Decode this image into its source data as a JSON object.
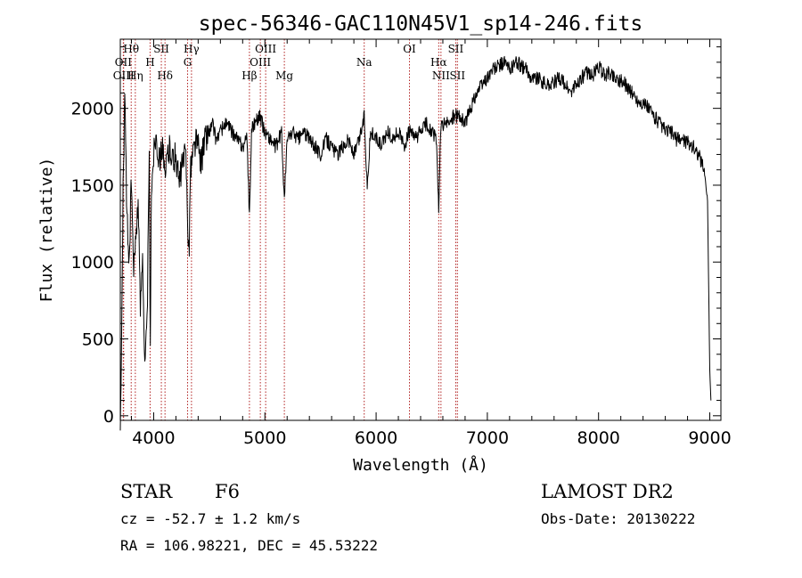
{
  "chart_data": {
    "type": "line",
    "title": "spec-56346-GAC110N45V1_sp14-246.fits",
    "xlabel": "Wavelength (Å)",
    "ylabel": "Flux (relative)",
    "xlim": [
      3700,
      9100
    ],
    "ylim": [
      -30,
      2450
    ],
    "xticks": [
      4000,
      5000,
      6000,
      7000,
      8000,
      9000
    ],
    "yticks": [
      0,
      500,
      1000,
      1500,
      2000
    ],
    "series": [
      {
        "name": "flux",
        "x": [
          3700,
          3710,
          3725,
          3740,
          3760,
          3780,
          3800,
          3820,
          3840,
          3860,
          3880,
          3900,
          3920,
          3940,
          3960,
          3970,
          3980,
          4000,
          4020,
          4050,
          4080,
          4102,
          4120,
          4150,
          4180,
          4200,
          4230,
          4260,
          4290,
          4310,
          4320,
          4330,
          4340,
          4350,
          4380,
          4400,
          4430,
          4460,
          4500,
          4530,
          4560,
          4600,
          4650,
          4700,
          4750,
          4800,
          4840,
          4861,
          4880,
          4900,
          4950,
          5000,
          5050,
          5100,
          5150,
          5175,
          5200,
          5250,
          5300,
          5350,
          5400,
          5450,
          5500,
          5550,
          5600,
          5650,
          5700,
          5750,
          5800,
          5850,
          5893,
          5920,
          5950,
          6000,
          6050,
          6100,
          6150,
          6200,
          6250,
          6300,
          6350,
          6400,
          6450,
          6500,
          6540,
          6563,
          6580,
          6600,
          6650,
          6700,
          6750,
          6800,
          6850,
          6900,
          6950,
          7000,
          7050,
          7100,
          7150,
          7200,
          7250,
          7300,
          7350,
          7400,
          7450,
          7500,
          7550,
          7600,
          7650,
          7700,
          7750,
          7800,
          7850,
          7900,
          7950,
          8000,
          8050,
          8100,
          8150,
          8200,
          8250,
          8300,
          8350,
          8400,
          8450,
          8500,
          8550,
          8600,
          8650,
          8700,
          8750,
          8800,
          8850,
          8900,
          8950,
          8980,
          9000,
          9010
        ],
        "y": [
          0,
          350,
          1450,
          2100,
          1300,
          1000,
          1550,
          900,
          1200,
          1400,
          700,
          1100,
          300,
          600,
          1650,
          400,
          1500,
          1700,
          1850,
          1650,
          1800,
          1500,
          1700,
          1750,
          1650,
          1700,
          1500,
          1650,
          1700,
          1200,
          1050,
          1600,
          1650,
          1700,
          1800,
          1750,
          1650,
          1800,
          1850,
          1900,
          1800,
          1850,
          1900,
          1850,
          1800,
          1750,
          1800,
          1300,
          1850,
          1900,
          1950,
          1850,
          1800,
          1750,
          1850,
          1400,
          1800,
          1850,
          1800,
          1850,
          1800,
          1750,
          1700,
          1800,
          1750,
          1700,
          1750,
          1800,
          1700,
          1800,
          1950,
          1500,
          1850,
          1800,
          1750,
          1850,
          1800,
          1850,
          1750,
          1850,
          1800,
          1850,
          1900,
          1850,
          1800,
          1350,
          1850,
          1900,
          1900,
          1950,
          1950,
          1900,
          2000,
          2100,
          2150,
          2200,
          2250,
          2270,
          2300,
          2250,
          2300,
          2280,
          2250,
          2200,
          2200,
          2170,
          2150,
          2170,
          2200,
          2150,
          2100,
          2150,
          2200,
          2230,
          2220,
          2270,
          2220,
          2230,
          2200,
          2180,
          2150,
          2100,
          2050,
          2030,
          2000,
          1950,
          1900,
          1850,
          1850,
          1800,
          1800,
          1780,
          1750,
          1700,
          1600,
          1400,
          300,
          100
        ]
      }
    ],
    "lines": [
      {
        "label": "Hθ",
        "wave": 3798,
        "row": 0
      },
      {
        "label": "OII",
        "wave": 3727,
        "row": 1
      },
      {
        "label": "OIII",
        "wave": 3730,
        "row": 2
      },
      {
        "label": "Hη",
        "wave": 3835,
        "row": 2
      },
      {
        "label": "H",
        "wave": 3968,
        "row": 1
      },
      {
        "label": "SII",
        "wave": 4069,
        "row": 0
      },
      {
        "label": "Hδ",
        "wave": 4102,
        "row": 2
      },
      {
        "label": "Hγ",
        "wave": 4340,
        "row": 0
      },
      {
        "label": "G",
        "wave": 4305,
        "row": 1
      },
      {
        "label": "Hβ",
        "wave": 4861,
        "row": 2
      },
      {
        "label": "OIII",
        "wave": 4959,
        "row": 1
      },
      {
        "label": "OIII",
        "wave": 5007,
        "row": 0
      },
      {
        "label": "Mg",
        "wave": 5175,
        "row": 2
      },
      {
        "label": "Na",
        "wave": 5893,
        "row": 1
      },
      {
        "label": "OI",
        "wave": 6300,
        "row": 0
      },
      {
        "label": "Hα",
        "wave": 6563,
        "row": 1
      },
      {
        "label": "NII",
        "wave": 6583,
        "row": 2
      },
      {
        "label": "SII",
        "wave": 6716,
        "row": 0
      },
      {
        "label": "SII",
        "wave": 6731,
        "row": 2
      }
    ]
  },
  "info": {
    "object_class": "STAR",
    "subclass": "F6",
    "survey": "LAMOST DR2",
    "cz": "cz = -52.7 ± 1.2 km/s",
    "obs_date": "Obs-Date: 20130222",
    "coords": "RA = 106.98221, DEC =  45.53222"
  }
}
